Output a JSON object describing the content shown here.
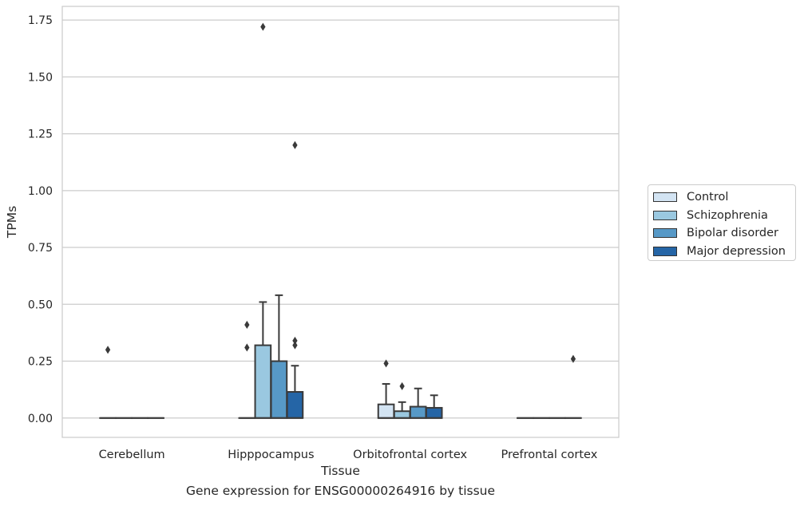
{
  "chart_data": {
    "type": "box",
    "xlabel": "Tissue",
    "ylabel": "TPMs",
    "caption": "Gene expression for ENSG00000264916 by tissue",
    "ylim": [
      -0.085,
      1.81
    ],
    "yticks": [
      0.0,
      0.25,
      0.5,
      0.75,
      1.0,
      1.25,
      1.5,
      1.75
    ],
    "ytick_labels": [
      "0.00",
      "0.25",
      "0.50",
      "0.75",
      "1.00",
      "1.25",
      "1.50",
      "1.75"
    ],
    "categories": [
      "Cerebellum",
      "Hipppocampus",
      "Orbitofrontal cortex",
      "Prefrontal cortex"
    ],
    "grid": true,
    "legend_position": "right",
    "series": [
      {
        "name": "Control",
        "color": "#d3e4f3",
        "boxes": [
          {
            "min": 0,
            "q1": 0,
            "median": 0,
            "q3": 0,
            "max": 0,
            "outliers": [
              0.3
            ]
          },
          {
            "min": 0,
            "q1": 0,
            "median": 0,
            "q3": 0,
            "max": 0,
            "outliers": [
              0.41,
              0.31
            ]
          },
          {
            "min": 0,
            "q1": 0,
            "median": 0,
            "q3": 0.06,
            "max": 0.15,
            "outliers": [
              0.24
            ]
          },
          {
            "min": 0,
            "q1": 0,
            "median": 0,
            "q3": 0,
            "max": 0,
            "outliers": []
          }
        ]
      },
      {
        "name": "Schizophrenia",
        "color": "#9ac8e0",
        "boxes": [
          {
            "min": 0,
            "q1": 0,
            "median": 0,
            "q3": 0,
            "max": 0,
            "outliers": []
          },
          {
            "min": 0,
            "q1": 0,
            "median": 0,
            "q3": 0.32,
            "max": 0.51,
            "outliers": [
              1.72
            ]
          },
          {
            "min": 0,
            "q1": 0,
            "median": 0,
            "q3": 0.03,
            "max": 0.07,
            "outliers": [
              0.14
            ]
          },
          {
            "min": 0,
            "q1": 0,
            "median": 0,
            "q3": 0,
            "max": 0,
            "outliers": []
          }
        ]
      },
      {
        "name": "Bipolar disorder",
        "color": "#5799c7",
        "boxes": [
          {
            "min": 0,
            "q1": 0,
            "median": 0,
            "q3": 0,
            "max": 0,
            "outliers": []
          },
          {
            "min": 0,
            "q1": 0,
            "median": 0,
            "q3": 0.25,
            "max": 0.54,
            "outliers": []
          },
          {
            "min": 0,
            "q1": 0,
            "median": 0,
            "q3": 0.05,
            "max": 0.13,
            "outliers": []
          },
          {
            "min": 0,
            "q1": 0,
            "median": 0,
            "q3": 0,
            "max": 0,
            "outliers": []
          }
        ]
      },
      {
        "name": "Major depression",
        "color": "#2565a6",
        "boxes": [
          {
            "min": 0,
            "q1": 0,
            "median": 0,
            "q3": 0,
            "max": 0,
            "outliers": []
          },
          {
            "min": 0,
            "q1": 0,
            "median": 0,
            "q3": 0.115,
            "max": 0.23,
            "outliers": [
              1.2,
              0.34,
              0.32
            ]
          },
          {
            "min": 0,
            "q1": 0,
            "median": 0,
            "q3": 0.045,
            "max": 0.1,
            "outliers": []
          },
          {
            "min": 0,
            "q1": 0,
            "median": 0,
            "q3": 0,
            "max": 0,
            "outliers": [
              0.26
            ]
          }
        ]
      }
    ]
  }
}
